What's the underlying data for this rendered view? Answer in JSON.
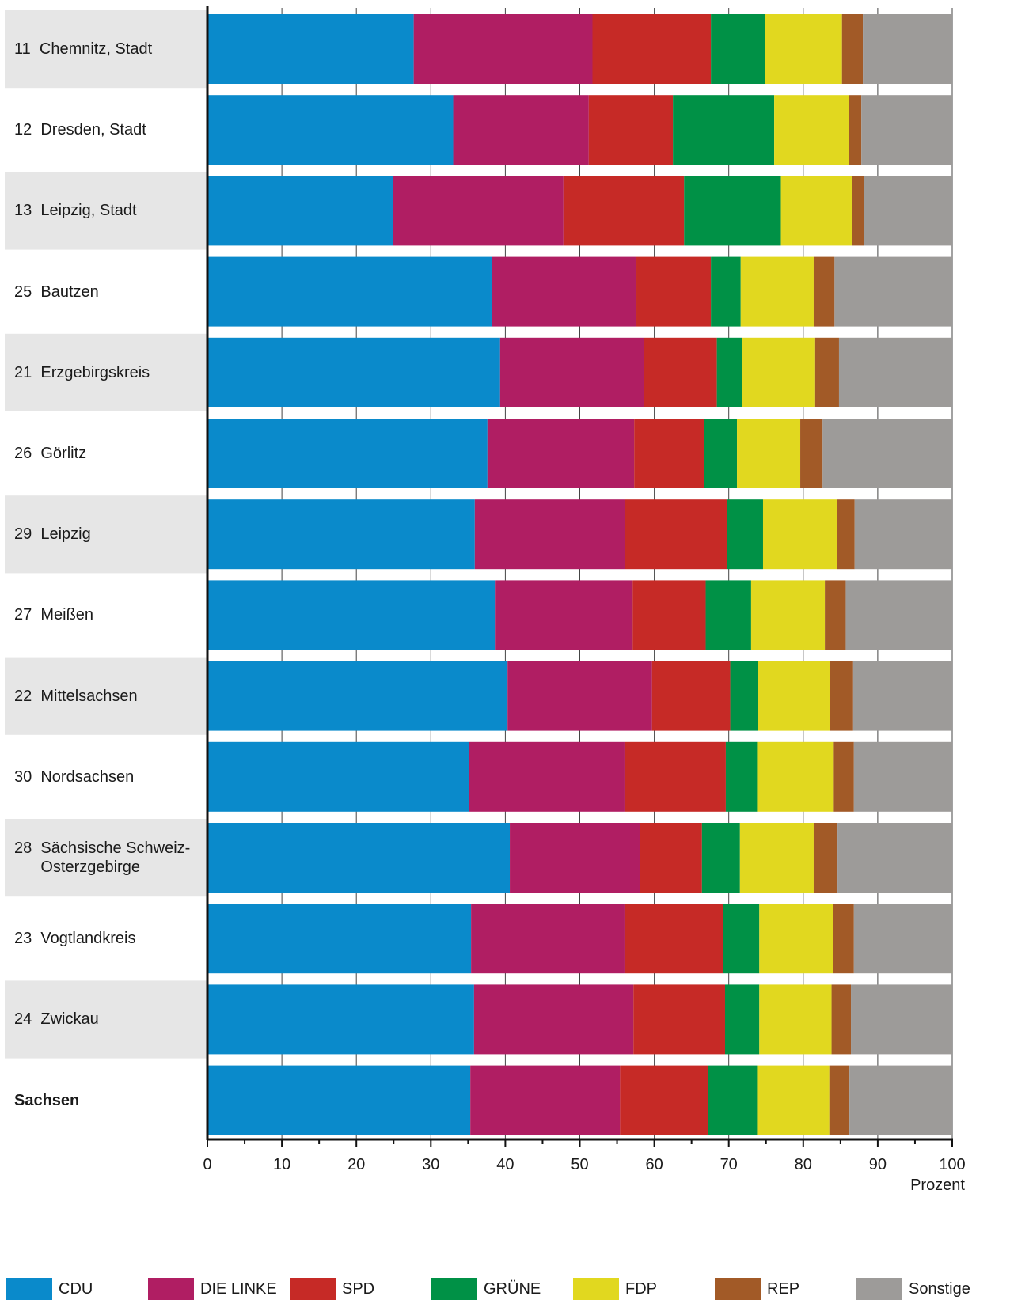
{
  "chart_data": {
    "type": "bar",
    "orientation": "horizontal",
    "stacked": true,
    "xlabel": "Prozent",
    "xlim": [
      0,
      100
    ],
    "xticks": [
      0,
      10,
      20,
      30,
      40,
      50,
      60,
      70,
      80,
      90,
      100
    ],
    "grid": true,
    "legend": "bottom",
    "categories": [
      "11  Chemnitz, Stadt",
      "12  Dresden, Stadt",
      "13  Leipzig, Stadt",
      "25  Bautzen",
      "21  Erzgebirgskreis",
      "26  Görlitz",
      "29  Leipzig",
      "27  Meißen",
      "22  Mittelsachsen",
      "30  Nordsachsen",
      "28  Sächsische Schweiz-\n      Osterzgebirge",
      "23  Vogtlandkreis",
      "24  Zwickau",
      "Sachsen"
    ],
    "series": [
      {
        "name": "CDU",
        "color": "#0a8acb",
        "values": [
          27.7,
          33.0,
          24.9,
          38.2,
          39.3,
          37.6,
          35.9,
          38.6,
          40.3,
          35.1,
          40.6,
          35.4,
          35.8,
          35.3
        ]
      },
      {
        "name": "DIE LINKE",
        "color": "#b01e63",
        "values": [
          24.0,
          18.2,
          22.9,
          19.4,
          19.3,
          19.7,
          20.2,
          18.5,
          19.4,
          20.9,
          17.5,
          20.6,
          21.4,
          20.1
        ]
      },
      {
        "name": "SPD",
        "color": "#c62a26",
        "values": [
          15.9,
          11.3,
          16.2,
          10.0,
          9.8,
          9.4,
          13.7,
          9.8,
          10.5,
          13.6,
          8.3,
          13.2,
          12.3,
          11.8
        ]
      },
      {
        "name": "GRÜNE",
        "color": "#009146",
        "values": [
          7.3,
          13.6,
          13.0,
          4.0,
          3.4,
          4.4,
          4.8,
          6.1,
          3.7,
          4.2,
          5.1,
          4.9,
          4.6,
          6.6
        ]
      },
      {
        "name": "FDP",
        "color": "#e1d81f",
        "values": [
          10.3,
          10.0,
          9.6,
          9.8,
          9.8,
          8.5,
          9.9,
          9.9,
          9.7,
          10.3,
          9.9,
          9.9,
          9.7,
          9.7
        ]
      },
      {
        "name": "REP",
        "color": "#a25a27",
        "values": [
          2.8,
          1.7,
          1.6,
          2.8,
          3.2,
          3.0,
          2.4,
          2.8,
          3.1,
          2.7,
          3.2,
          2.8,
          2.6,
          2.7
        ]
      },
      {
        "name": "Sonstige",
        "color": "#9d9b99",
        "values": [
          12.0,
          12.2,
          11.8,
          15.8,
          15.2,
          17.4,
          13.1,
          14.3,
          13.3,
          13.2,
          15.4,
          13.2,
          13.6,
          13.8
        ]
      }
    ],
    "bold_categories": [
      "Sachsen"
    ]
  }
}
